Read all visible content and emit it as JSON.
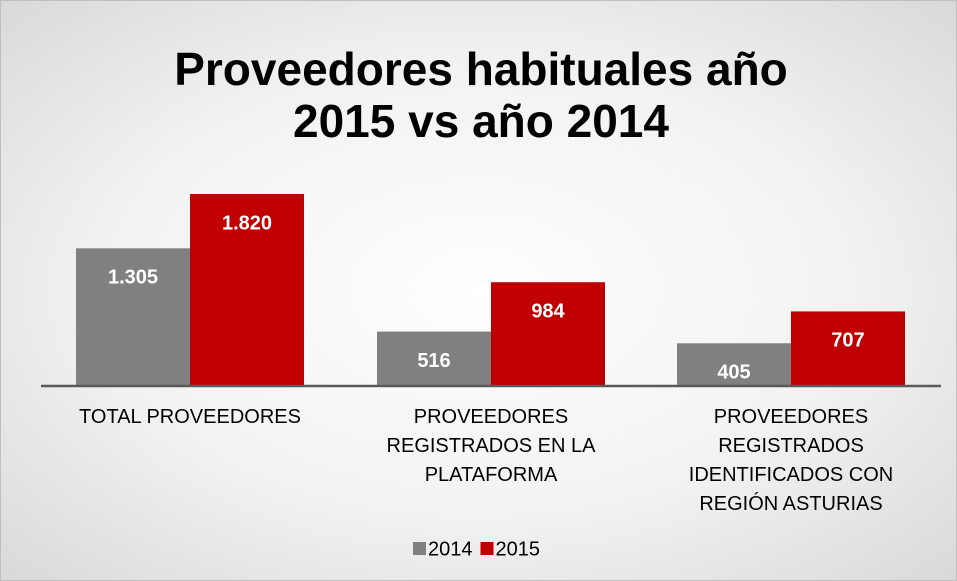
{
  "chart_data": {
    "type": "bar",
    "title": "Proveedores habituales año 2015 vs año 2014",
    "categories": [
      "TOTAL PROVEEDORES",
      "PROVEEDORES REGISTRADOS EN LA PLATAFORMA",
      "PROVEEDORES REGISTRADOS IDENTIFICADOS CON REGIÓN ASTURIAS"
    ],
    "series": [
      {
        "name": "2014",
        "color": "#808080",
        "values": [
          1305,
          516,
          405
        ],
        "value_labels": [
          "1.305",
          "516",
          "405"
        ]
      },
      {
        "name": "2015",
        "color": "#c00000",
        "values": [
          1820,
          984,
          707
        ],
        "value_labels": [
          "1.820",
          "984",
          "707"
        ]
      }
    ],
    "legend": "bottom"
  }
}
